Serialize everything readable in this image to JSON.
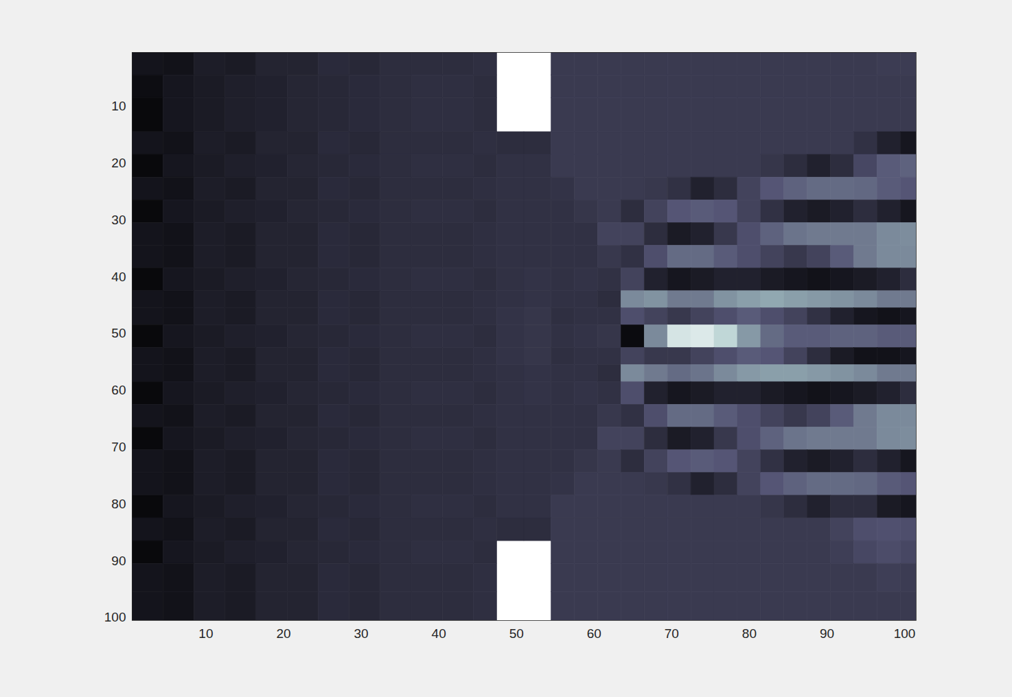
{
  "chart_data": {
    "type": "heatmap",
    "color": "bone",
    "color_range": [
      0,
      1
    ],
    "xlim": [
      0.5,
      101.5
    ],
    "ylim": [
      100.5,
      0.5
    ],
    "xticks": [
      10,
      20,
      30,
      40,
      50,
      60,
      70,
      80,
      90,
      100
    ],
    "yticks": [
      10,
      20,
      30,
      40,
      50,
      60,
      70,
      80,
      90,
      100
    ],
    "x_edges": [
      0.5,
      4.5,
      8.5,
      12.5,
      16.5,
      20.5,
      24.5,
      28.5,
      32.5,
      36.5,
      40.5,
      44.5,
      47.5,
      51,
      54.5,
      57.5,
      60.5,
      63.5,
      66.5,
      69.5,
      72.5,
      75.5,
      78.5,
      81.5,
      84.5,
      87.5,
      90.5,
      93.5,
      96.5,
      99.5,
      101.5
    ],
    "y_edges": [
      0.5,
      4.5,
      8.5,
      14.5,
      18.5,
      22.5,
      26.5,
      30.5,
      34.5,
      38.5,
      42.5,
      45.5,
      48.5,
      52.5,
      55.5,
      58.5,
      62.5,
      66.5,
      70.5,
      74.5,
      78.5,
      82.5,
      86.5,
      90.5,
      95.5,
      100.5
    ],
    "cells": [
      [
        0.09,
        0.08,
        0.13,
        0.12,
        0.16,
        0.16,
        0.19,
        0.18,
        0.2,
        0.2,
        0.2,
        0.21,
        null,
        null,
        0.26,
        0.26,
        0.26,
        0.26,
        0.26,
        0.26,
        0.26,
        0.26,
        0.26,
        0.26,
        0.26,
        0.26,
        0.26,
        0.26,
        0.27,
        0.27
      ],
      [
        0.06,
        0.1,
        0.12,
        0.14,
        0.15,
        0.17,
        0.18,
        0.19,
        0.2,
        0.21,
        0.21,
        0.2,
        null,
        null,
        0.26,
        0.26,
        0.26,
        0.26,
        0.26,
        0.26,
        0.26,
        0.26,
        0.26,
        0.26,
        0.26,
        0.26,
        0.26,
        0.26,
        0.26,
        0.26
      ],
      [
        0.04,
        0.1,
        0.12,
        0.14,
        0.15,
        0.17,
        0.18,
        0.19,
        0.2,
        0.21,
        0.21,
        0.2,
        null,
        null,
        0.26,
        0.26,
        0.26,
        0.26,
        0.26,
        0.26,
        0.26,
        0.26,
        0.26,
        0.26,
        0.26,
        0.26,
        0.26,
        0.26,
        0.26,
        0.26
      ],
      [
        0.09,
        0.08,
        0.13,
        0.12,
        0.16,
        0.16,
        0.19,
        0.18,
        0.2,
        0.2,
        0.2,
        0.21,
        0.2,
        0.2,
        0.26,
        0.26,
        0.26,
        0.26,
        0.26,
        0.26,
        0.26,
        0.26,
        0.26,
        0.26,
        0.26,
        0.26,
        0.26,
        0.22,
        0.15,
        0.1
      ],
      [
        0.04,
        0.1,
        0.12,
        0.14,
        0.15,
        0.17,
        0.18,
        0.19,
        0.2,
        0.21,
        0.21,
        0.2,
        0.22,
        0.22,
        0.26,
        0.26,
        0.26,
        0.26,
        0.26,
        0.26,
        0.26,
        0.26,
        0.26,
        0.24,
        0.2,
        0.15,
        0.2,
        0.32,
        0.4,
        0.42
      ],
      [
        0.09,
        0.08,
        0.13,
        0.12,
        0.16,
        0.16,
        0.19,
        0.18,
        0.2,
        0.2,
        0.2,
        0.21,
        0.22,
        0.22,
        0.23,
        0.26,
        0.26,
        0.26,
        0.25,
        0.22,
        0.15,
        0.2,
        0.3,
        0.38,
        0.42,
        0.45,
        0.45,
        0.44,
        0.4,
        0.38
      ],
      [
        0.04,
        0.1,
        0.12,
        0.14,
        0.15,
        0.17,
        0.18,
        0.19,
        0.2,
        0.21,
        0.21,
        0.2,
        0.22,
        0.22,
        0.22,
        0.24,
        0.26,
        0.2,
        0.3,
        0.38,
        0.4,
        0.38,
        0.3,
        0.22,
        0.15,
        0.12,
        0.15,
        0.2,
        0.15,
        0.1
      ],
      [
        0.09,
        0.08,
        0.13,
        0.12,
        0.16,
        0.16,
        0.19,
        0.18,
        0.2,
        0.2,
        0.2,
        0.21,
        0.22,
        0.22,
        0.22,
        0.22,
        0.3,
        0.3,
        0.2,
        0.12,
        0.15,
        0.25,
        0.35,
        0.42,
        0.48,
        0.5,
        0.5,
        0.5,
        0.55,
        0.56
      ],
      [
        0.09,
        0.08,
        0.13,
        0.12,
        0.16,
        0.16,
        0.19,
        0.18,
        0.2,
        0.2,
        0.2,
        0.21,
        0.22,
        0.22,
        0.22,
        0.22,
        0.25,
        0.22,
        0.35,
        0.45,
        0.45,
        0.4,
        0.35,
        0.3,
        0.25,
        0.3,
        0.4,
        0.5,
        0.55,
        0.55
      ],
      [
        0.04,
        0.1,
        0.12,
        0.14,
        0.15,
        0.17,
        0.18,
        0.19,
        0.2,
        0.21,
        0.21,
        0.2,
        0.22,
        0.23,
        0.22,
        0.23,
        0.22,
        0.3,
        0.15,
        0.1,
        0.12,
        0.15,
        0.15,
        0.12,
        0.1,
        0.08,
        0.1,
        0.12,
        0.15,
        0.2
      ],
      [
        0.09,
        0.08,
        0.13,
        0.12,
        0.16,
        0.16,
        0.19,
        0.18,
        0.2,
        0.2,
        0.2,
        0.21,
        0.22,
        0.23,
        0.22,
        0.22,
        0.2,
        0.55,
        0.58,
        0.5,
        0.5,
        0.58,
        0.62,
        0.65,
        0.62,
        0.6,
        0.58,
        0.55,
        0.5,
        0.5
      ],
      [
        0.09,
        0.08,
        0.13,
        0.12,
        0.16,
        0.16,
        0.19,
        0.18,
        0.2,
        0.2,
        0.2,
        0.21,
        0.23,
        0.24,
        0.21,
        0.22,
        0.22,
        0.35,
        0.3,
        0.25,
        0.3,
        0.35,
        0.4,
        0.35,
        0.3,
        0.22,
        0.15,
        0.1,
        0.08,
        0.1
      ],
      [
        0.04,
        0.1,
        0.12,
        0.14,
        0.15,
        0.17,
        0.18,
        0.19,
        0.2,
        0.21,
        0.21,
        0.2,
        0.23,
        0.24,
        0.22,
        0.23,
        0.24,
        0.05,
        0.55,
        0.88,
        0.9,
        0.82,
        0.6,
        0.45,
        0.4,
        0.4,
        0.42,
        0.42,
        0.4,
        0.4
      ],
      [
        0.09,
        0.08,
        0.13,
        0.12,
        0.16,
        0.16,
        0.19,
        0.18,
        0.2,
        0.2,
        0.2,
        0.21,
        0.23,
        0.24,
        0.21,
        0.22,
        0.22,
        0.3,
        0.25,
        0.25,
        0.3,
        0.35,
        0.4,
        0.38,
        0.3,
        0.2,
        0.12,
        0.08,
        0.08,
        0.1
      ],
      [
        0.09,
        0.08,
        0.13,
        0.12,
        0.16,
        0.16,
        0.19,
        0.18,
        0.2,
        0.2,
        0.2,
        0.21,
        0.22,
        0.23,
        0.22,
        0.22,
        0.2,
        0.55,
        0.5,
        0.45,
        0.48,
        0.55,
        0.6,
        0.62,
        0.62,
        0.6,
        0.58,
        0.55,
        0.5,
        0.5
      ],
      [
        0.04,
        0.1,
        0.12,
        0.14,
        0.15,
        0.17,
        0.18,
        0.19,
        0.2,
        0.21,
        0.21,
        0.2,
        0.22,
        0.23,
        0.22,
        0.23,
        0.22,
        0.35,
        0.15,
        0.1,
        0.12,
        0.15,
        0.15,
        0.12,
        0.1,
        0.08,
        0.1,
        0.12,
        0.15,
        0.2
      ],
      [
        0.09,
        0.08,
        0.13,
        0.12,
        0.16,
        0.16,
        0.19,
        0.18,
        0.2,
        0.2,
        0.2,
        0.21,
        0.22,
        0.22,
        0.22,
        0.22,
        0.25,
        0.22,
        0.35,
        0.45,
        0.45,
        0.4,
        0.35,
        0.3,
        0.25,
        0.3,
        0.4,
        0.5,
        0.55,
        0.55
      ],
      [
        0.04,
        0.1,
        0.12,
        0.14,
        0.15,
        0.17,
        0.18,
        0.19,
        0.2,
        0.21,
        0.21,
        0.2,
        0.22,
        0.22,
        0.22,
        0.22,
        0.3,
        0.3,
        0.2,
        0.12,
        0.15,
        0.25,
        0.35,
        0.42,
        0.48,
        0.5,
        0.5,
        0.5,
        0.55,
        0.56
      ],
      [
        0.09,
        0.08,
        0.13,
        0.12,
        0.16,
        0.16,
        0.19,
        0.18,
        0.2,
        0.2,
        0.2,
        0.21,
        0.22,
        0.22,
        0.22,
        0.24,
        0.26,
        0.2,
        0.3,
        0.38,
        0.4,
        0.38,
        0.3,
        0.22,
        0.15,
        0.12,
        0.15,
        0.2,
        0.15,
        0.1
      ],
      [
        0.09,
        0.08,
        0.13,
        0.12,
        0.16,
        0.16,
        0.19,
        0.18,
        0.2,
        0.2,
        0.2,
        0.21,
        0.22,
        0.22,
        0.23,
        0.26,
        0.26,
        0.26,
        0.25,
        0.22,
        0.15,
        0.2,
        0.3,
        0.38,
        0.42,
        0.45,
        0.45,
        0.44,
        0.4,
        0.38
      ],
      [
        0.04,
        0.1,
        0.12,
        0.14,
        0.15,
        0.17,
        0.18,
        0.19,
        0.2,
        0.21,
        0.21,
        0.2,
        0.22,
        0.22,
        0.26,
        0.26,
        0.26,
        0.26,
        0.26,
        0.26,
        0.26,
        0.26,
        0.26,
        0.24,
        0.2,
        0.15,
        0.2,
        0.2,
        0.12,
        0.1
      ],
      [
        0.09,
        0.08,
        0.13,
        0.12,
        0.16,
        0.16,
        0.19,
        0.18,
        0.2,
        0.2,
        0.2,
        0.21,
        0.2,
        0.2,
        0.26,
        0.26,
        0.26,
        0.26,
        0.26,
        0.26,
        0.26,
        0.26,
        0.26,
        0.26,
        0.26,
        0.26,
        0.3,
        0.35,
        0.36,
        0.35
      ],
      [
        0.04,
        0.1,
        0.12,
        0.14,
        0.15,
        0.17,
        0.18,
        0.19,
        0.2,
        0.21,
        0.21,
        0.2,
        null,
        null,
        0.26,
        0.26,
        0.26,
        0.26,
        0.26,
        0.26,
        0.26,
        0.26,
        0.26,
        0.26,
        0.26,
        0.26,
        0.28,
        0.32,
        0.34,
        0.32
      ],
      [
        0.09,
        0.08,
        0.13,
        0.12,
        0.16,
        0.16,
        0.19,
        0.18,
        0.2,
        0.2,
        0.2,
        0.21,
        null,
        null,
        0.26,
        0.26,
        0.26,
        0.26,
        0.26,
        0.26,
        0.26,
        0.26,
        0.26,
        0.26,
        0.26,
        0.26,
        0.26,
        0.26,
        0.28,
        0.27
      ],
      [
        0.09,
        0.08,
        0.13,
        0.12,
        0.16,
        0.16,
        0.19,
        0.18,
        0.2,
        0.2,
        0.2,
        0.21,
        null,
        null,
        0.26,
        0.26,
        0.26,
        0.26,
        0.26,
        0.26,
        0.26,
        0.26,
        0.26,
        0.26,
        0.26,
        0.26,
        0.26,
        0.26,
        0.26,
        0.26
      ]
    ]
  }
}
